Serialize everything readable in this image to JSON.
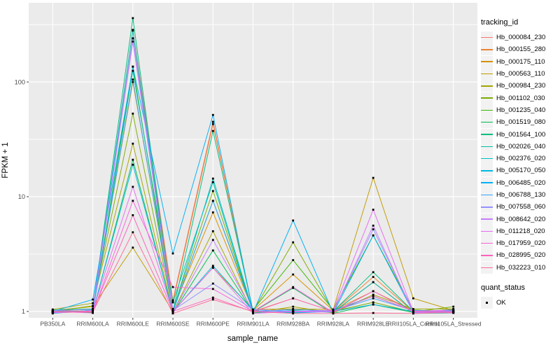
{
  "chart_data": {
    "type": "line",
    "title": "",
    "xlabel": "sample_name",
    "ylabel": "FPKM + 1",
    "y_scale": "log10",
    "y_ticks": [
      1,
      10,
      100
    ],
    "y_minor_ticks": [
      3.162,
      31.62,
      316.2
    ],
    "ylim": [
      0.88,
      490
    ],
    "grid": true,
    "legend_position": "right",
    "panel_bg": "#EBEBEB",
    "grid_color": "#FFFFFF",
    "tick_color": "#333333",
    "tick_label_color": "#4D4D4D",
    "axis_title_color": "#000000",
    "point_color": "#000000",
    "legend_key_bg": "#F2F2F2",
    "legend_title": "tracking_id",
    "legend2_title": "quant_status",
    "quant_status_label": "OK",
    "x_categories": [
      "PB350LA",
      "RRIM600LA",
      "RRIM600LE",
      "RRIM600SE",
      "RRIM600PE",
      "RRIM901LA",
      "RRIM928BA",
      "RRIM928LA",
      "RRIM928LE",
      "RRII105LA_Control",
      "RRII105LA_Stressed"
    ],
    "series": [
      {
        "name": "Hb_000084_230",
        "color": "#F8766D",
        "values": [
          0.97,
          1.0,
          285,
          1.25,
          45.0,
          0.98,
          1.0,
          0.99,
          1.8,
          0.97,
          0.98
        ]
      },
      {
        "name": "Hb_000155_280",
        "color": "#EA8331",
        "values": [
          1.0,
          1.05,
          240,
          1.2,
          43.0,
          1.0,
          1.3,
          1.0,
          2.0,
          1.0,
          1.0
        ]
      },
      {
        "name": "Hb_000175_110",
        "color": "#D89000",
        "values": [
          0.99,
          1.02,
          100,
          1.05,
          7.3,
          1.02,
          2.1,
          1.02,
          1.5,
          1.02,
          1.0
        ]
      },
      {
        "name": "Hb_000563_110",
        "color": "#C09B00",
        "values": [
          1.02,
          1.1,
          3.6,
          1.0,
          2.4,
          1.04,
          1.05,
          1.04,
          14.6,
          1.3,
          1.02
        ]
      },
      {
        "name": "Hb_000984_230",
        "color": "#A3A500",
        "values": [
          1.04,
          1.18,
          29.0,
          0.98,
          5.0,
          0.97,
          1.1,
          0.97,
          1.4,
          1.05,
          1.05
        ]
      },
      {
        "name": "Hb_001102_030",
        "color": "#7CAE00",
        "values": [
          1.0,
          1.12,
          53.0,
          1.02,
          11.2,
          1.0,
          4.0,
          1.0,
          1.2,
          0.99,
          1.1
        ]
      },
      {
        "name": "Hb_001235_040",
        "color": "#39B600",
        "values": [
          0.98,
          1.0,
          136,
          1.0,
          9.2,
          1.03,
          2.8,
          1.03,
          4.6,
          1.03,
          0.99
        ]
      },
      {
        "name": "Hb_001519_080",
        "color": "#00BB4E",
        "values": [
          1.0,
          0.98,
          21.0,
          0.97,
          3.4,
          0.99,
          1.6,
          0.96,
          1.15,
          0.98,
          1.04
        ]
      },
      {
        "name": "Hb_001564_100",
        "color": "#00BF7D",
        "values": [
          1.03,
          1.05,
          360,
          1.0,
          37.4,
          1.01,
          0.98,
          1.0,
          2.2,
          1.0,
          1.0
        ]
      },
      {
        "name": "Hb_002026_040",
        "color": "#00C1A3",
        "values": [
          1.0,
          1.0,
          125,
          1.2,
          13.4,
          0.97,
          1.02,
          0.98,
          1.8,
          0.96,
          0.97
        ]
      },
      {
        "name": "Hb_002376_020",
        "color": "#00BFC4",
        "values": [
          0.96,
          1.03,
          280,
          1.0,
          14.4,
          1.0,
          1.0,
          1.02,
          1.36,
          1.01,
          1.02
        ]
      },
      {
        "name": "Hb_005170_050",
        "color": "#00BAE0",
        "values": [
          1.01,
          1.0,
          19.0,
          0.99,
          2.5,
          1.02,
          0.97,
          1.0,
          1.15,
          1.0,
          0.98
        ]
      },
      {
        "name": "Hb_006485_020",
        "color": "#00B0F6",
        "values": [
          1.0,
          1.27,
          136,
          3.2,
          51.6,
          0.98,
          6.2,
          0.97,
          4.6,
          0.98,
          1.0
        ]
      },
      {
        "name": "Hb_006788_130",
        "color": "#35A2FF",
        "values": [
          0.98,
          1.0,
          105,
          1.0,
          9.2,
          1.0,
          1.04,
          1.01,
          1.3,
          1.02,
          1.01
        ]
      },
      {
        "name": "Hb_007558_060",
        "color": "#9590FF",
        "values": [
          1.02,
          1.04,
          240,
          1.02,
          1.75,
          1.04,
          1.0,
          1.0,
          5.2,
          1.0,
          0.99
        ]
      },
      {
        "name": "Hb_008642_020",
        "color": "#C77CFF",
        "values": [
          1.0,
          1.0,
          225,
          0.98,
          4.2,
          1.0,
          0.99,
          0.99,
          5.6,
          0.97,
          1.0
        ]
      },
      {
        "name": "Hb_011218_020",
        "color": "#E76BF3",
        "values": [
          0.97,
          1.02,
          12.2,
          1.0,
          2.4,
          0.96,
          1.0,
          1.02,
          7.7,
          1.0,
          1.03
        ]
      },
      {
        "name": "Hb_017959_020",
        "color": "#FA62DB",
        "values": [
          1.0,
          0.97,
          9.2,
          1.63,
          1.57,
          1.0,
          1.63,
          0.98,
          1.5,
          0.99,
          0.97
        ]
      },
      {
        "name": "Hb_028995_020",
        "color": "#FF62BC",
        "values": [
          0.99,
          1.0,
          6.9,
          1.0,
          1.32,
          0.99,
          1.3,
          1.0,
          1.36,
          1.01,
          1.0
        ]
      },
      {
        "name": "Hb_032223_010",
        "color": "#FF6A98",
        "values": [
          1.0,
          0.99,
          4.9,
          0.96,
          1.27,
          1.0,
          0.96,
          0.96,
          0.97,
          0.96,
          0.98
        ]
      }
    ]
  }
}
